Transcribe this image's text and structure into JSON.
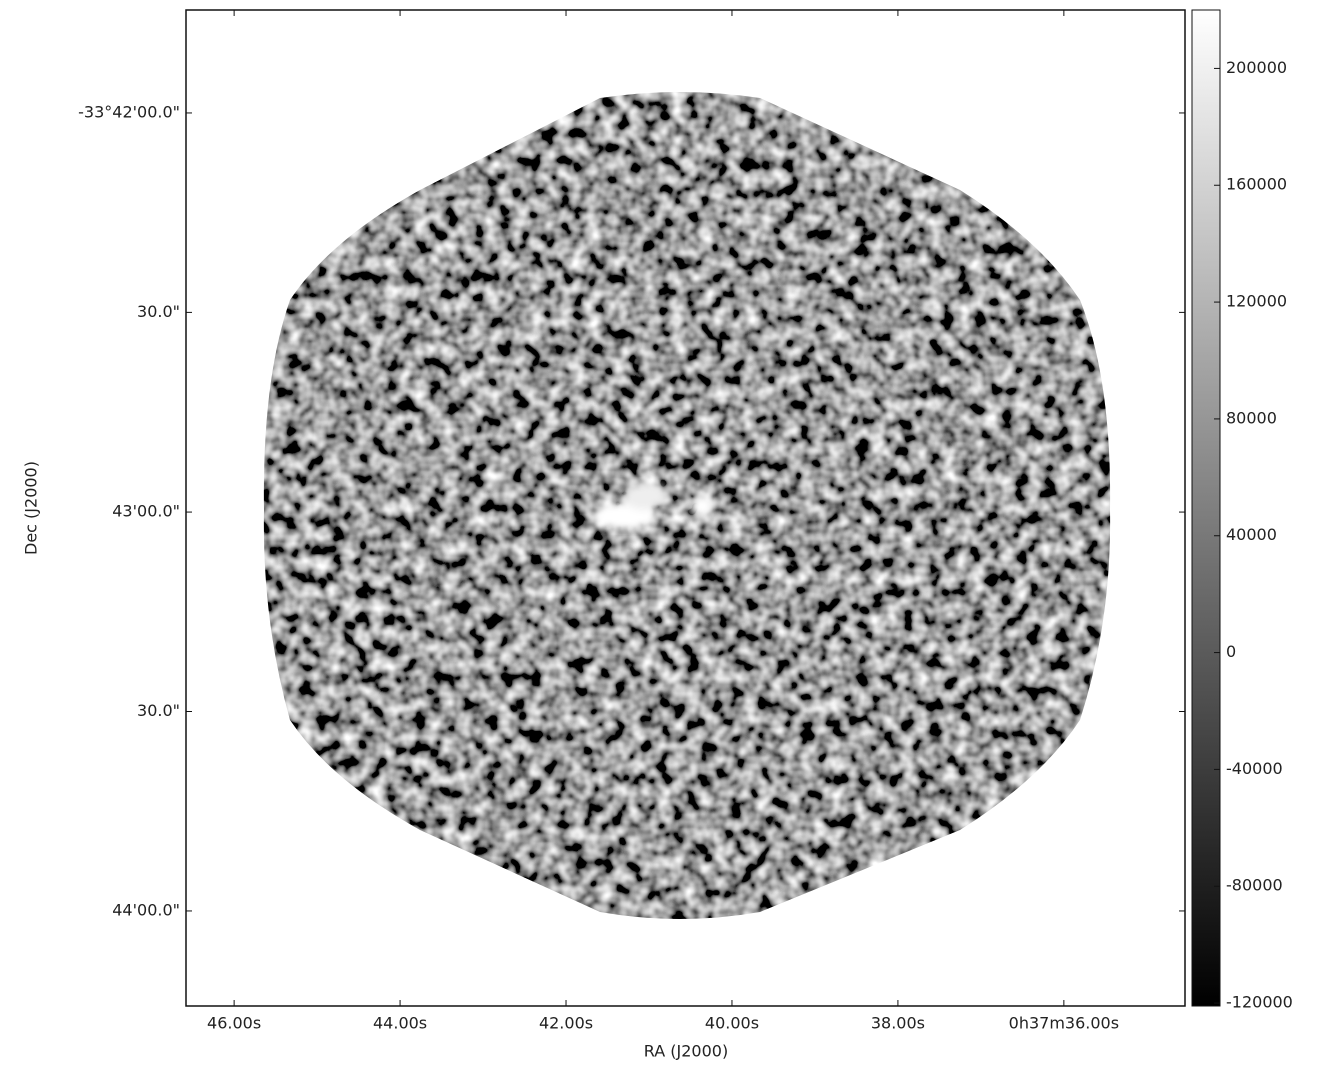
{
  "chart_data": {
    "type": "image",
    "xlabel": "RA (J2000)",
    "ylabel": "Dec (J2000)",
    "xlim": [
      46.58,
      34.54
    ],
    "xticks": [
      {
        "value": 46,
        "label": "46.00s"
      },
      {
        "value": 44,
        "label": "44.00s"
      },
      {
        "value": 42,
        "label": "42.00s"
      },
      {
        "value": 40,
        "label": "40.00s"
      },
      {
        "value": 38,
        "label": "38.00s"
      },
      {
        "value": 36,
        "label": "0h37m36.00s"
      }
    ],
    "ylim": [
      -33.7373,
      -33.6957
    ],
    "yticks": [
      {
        "value": -33.7,
        "label": "-33°42'00.0\""
      },
      {
        "value": -33.70833,
        "label": "30.0\""
      },
      {
        "value": -33.71667,
        "label": "43'00.0\""
      },
      {
        "value": -33.725,
        "label": "30.0\""
      },
      {
        "value": -33.73333,
        "label": "44'00.0\""
      }
    ],
    "cmap": "gray",
    "colorbar": {
      "clim": [
        -121000,
        220000
      ],
      "ticks": [
        200000,
        160000,
        120000,
        80000,
        40000,
        0,
        -40000,
        -80000,
        -120000
      ]
    }
  }
}
